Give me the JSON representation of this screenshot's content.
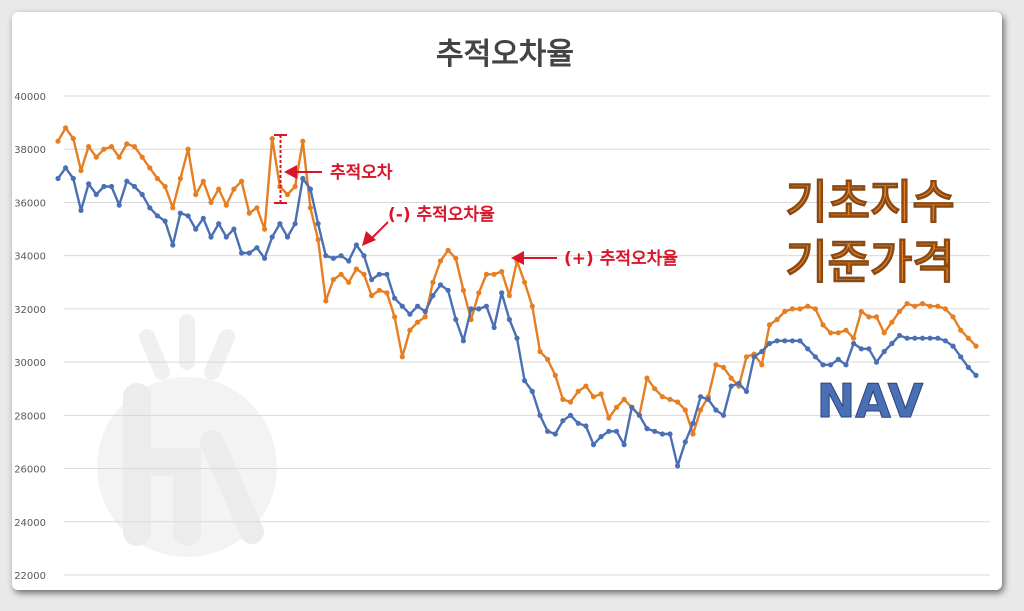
{
  "chart_data": {
    "type": "line",
    "title": "추적오차율",
    "ylim": [
      22000,
      40000
    ],
    "yticks": [
      22000,
      24000,
      26000,
      28000,
      30000,
      32000,
      34000,
      36000,
      38000,
      40000
    ],
    "grid": true,
    "series": [
      {
        "name": "기초지수 기준가격",
        "color": "#e67e22",
        "values": [
          38300,
          38800,
          38400,
          37200,
          38100,
          37700,
          38000,
          38100,
          37700,
          38200,
          38100,
          37700,
          37300,
          36900,
          36600,
          35800,
          36900,
          38000,
          36300,
          36800,
          36000,
          36500,
          35900,
          36500,
          36800,
          35600,
          35800,
          35000,
          38400,
          36600,
          36300,
          36600,
          38300,
          35800,
          34600,
          32300,
          33100,
          33300,
          33000,
          33500,
          33300,
          32500,
          32700,
          32600,
          31700,
          30200,
          31200,
          31500,
          31700,
          33000,
          33800,
          34200,
          33900,
          32700,
          31600,
          32600,
          33300,
          33300,
          33400,
          32500,
          33800,
          33000,
          32100,
          30400,
          30100,
          29500,
          28600,
          28500,
          28900,
          29100,
          28700,
          28800,
          27900,
          28300,
          28600,
          28300,
          28000,
          29400,
          29000,
          28700,
          28600,
          28500,
          28200,
          27300,
          28200,
          28700,
          29900,
          29800,
          29400,
          29100,
          30200,
          30300,
          29900,
          31400,
          31600,
          31900,
          32000,
          32000,
          32100,
          32000,
          31400,
          31100,
          31100,
          31200,
          30900,
          31900,
          31700,
          31700,
          31100,
          31500,
          31900,
          32200,
          32100,
          32200,
          32100,
          32100,
          32000,
          31700,
          31200,
          30900,
          30600
        ]
      },
      {
        "name": "NAV",
        "color": "#4a6fb5",
        "values": [
          36900,
          37300,
          36900,
          35700,
          36700,
          36300,
          36600,
          36600,
          35900,
          36800,
          36600,
          36300,
          35800,
          35500,
          35300,
          34400,
          35600,
          35500,
          35000,
          35400,
          34700,
          35200,
          34700,
          35000,
          34100,
          34100,
          34300,
          33900,
          34700,
          35200,
          34700,
          35200,
          36900,
          36500,
          35200,
          34000,
          33900,
          34000,
          33800,
          34400,
          34000,
          33100,
          33300,
          33300,
          32400,
          32100,
          31800,
          32100,
          31900,
          32500,
          32900,
          32700,
          31600,
          30800,
          32000,
          32000,
          32100,
          31300,
          32600,
          31600,
          30900,
          29300,
          28900,
          28000,
          27400,
          27300,
          27800,
          28000,
          27700,
          27600,
          26900,
          27200,
          27400,
          27400,
          26900,
          28300,
          28000,
          27500,
          27400,
          27300,
          27300,
          26100,
          27000,
          27700,
          28700,
          28600,
          28200,
          28000,
          29100,
          29200,
          28900,
          30200,
          30400,
          30700,
          30800,
          30800,
          30800,
          30800,
          30500,
          30200,
          29900,
          29900,
          30100,
          29900,
          30700,
          30500,
          30500,
          30000,
          30400,
          30700,
          31000,
          30900,
          30900,
          30900,
          30900,
          30900,
          30800,
          30600,
          30200,
          29800,
          29500
        ]
      }
    ],
    "annotations": {
      "tracking_error": "추적오차",
      "negative_rate": "(-) 추적오차율",
      "positive_rate": "(+) 추적오차율"
    },
    "legend_labels": {
      "index_line1": "기초지수",
      "index_line2": "기준가격",
      "nav": "NAV"
    },
    "colors": {
      "index": "#e67e22",
      "nav": "#4a6fb5",
      "annotation": "#d9152a",
      "grid": "#d9d9d9",
      "tick": "#595959"
    }
  }
}
